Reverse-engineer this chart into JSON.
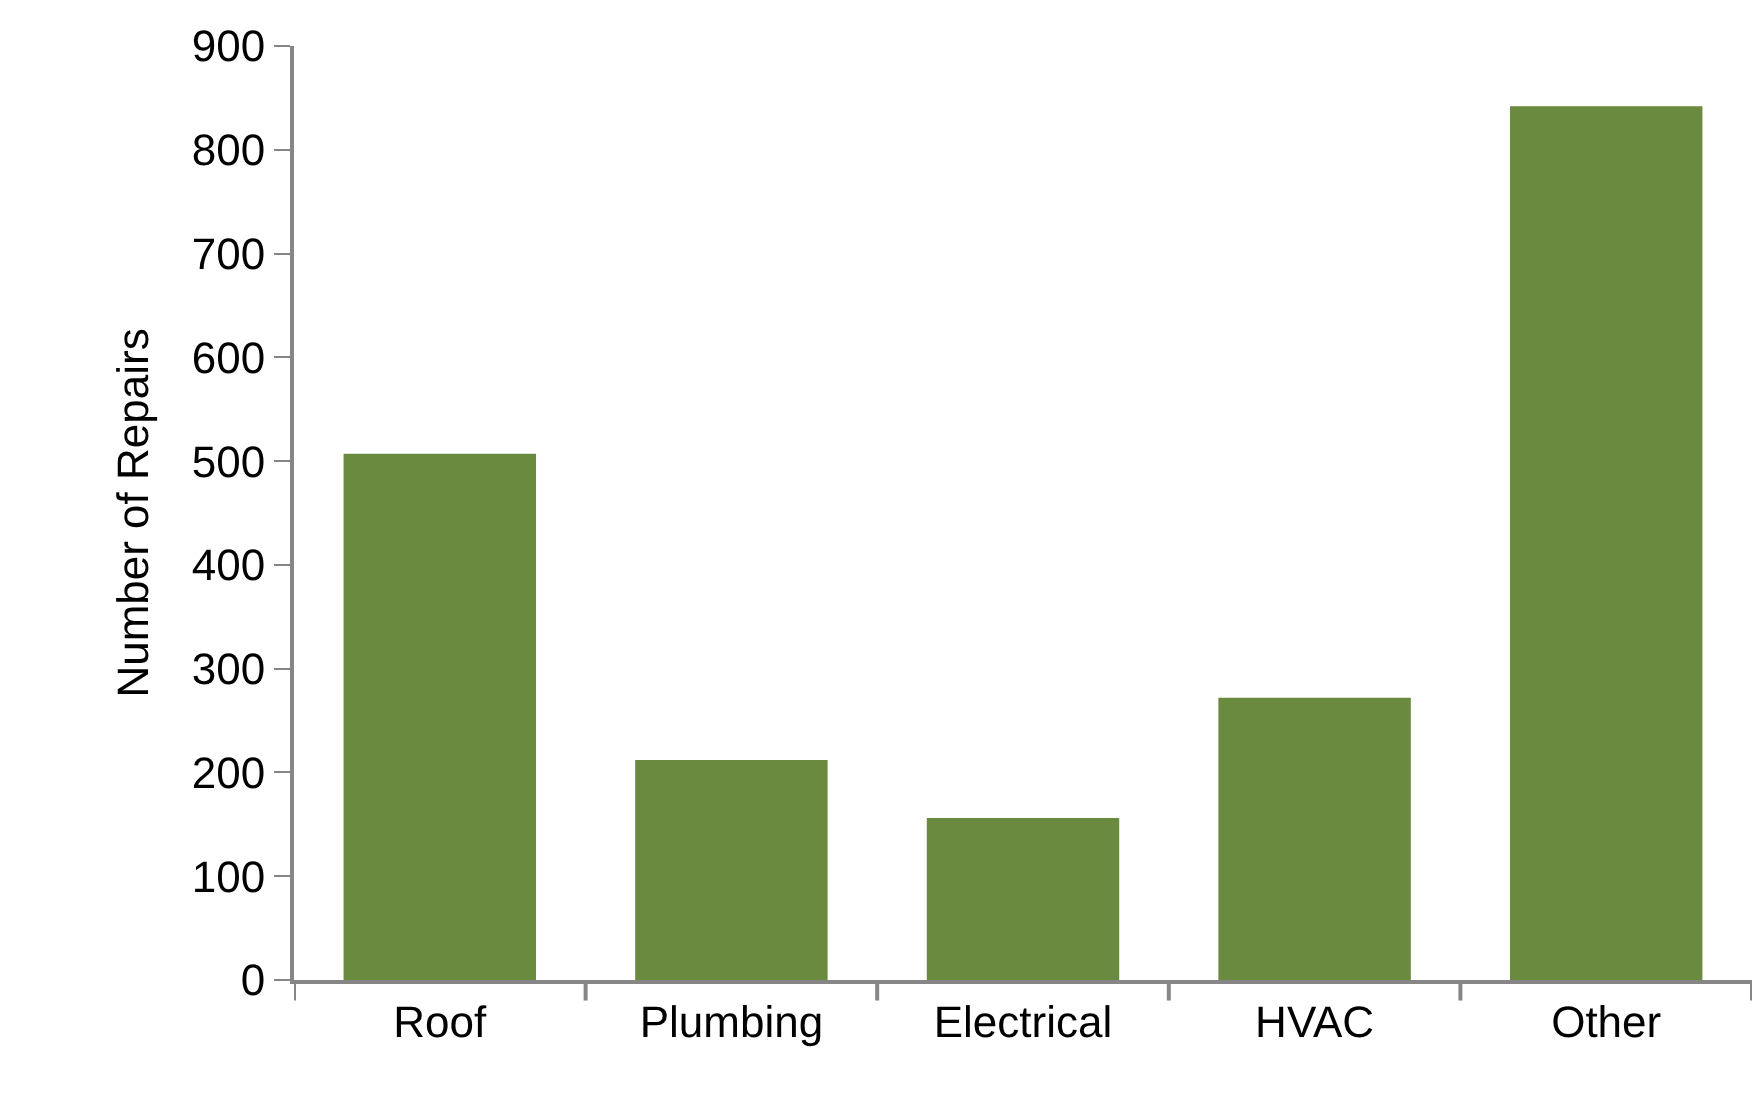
{
  "chart_data": {
    "type": "bar",
    "ylabel": "Number of Repairs",
    "categories": [
      "Roof",
      "Plumbing",
      "Electrical",
      "HVAC",
      "Other"
    ],
    "values": [
      507,
      212,
      156,
      272,
      842
    ],
    "color": "#6a8a3f",
    "ylim": [
      0,
      900
    ],
    "yticks": [
      0,
      100,
      200,
      300,
      400,
      500,
      600,
      700,
      800,
      900
    ]
  }
}
